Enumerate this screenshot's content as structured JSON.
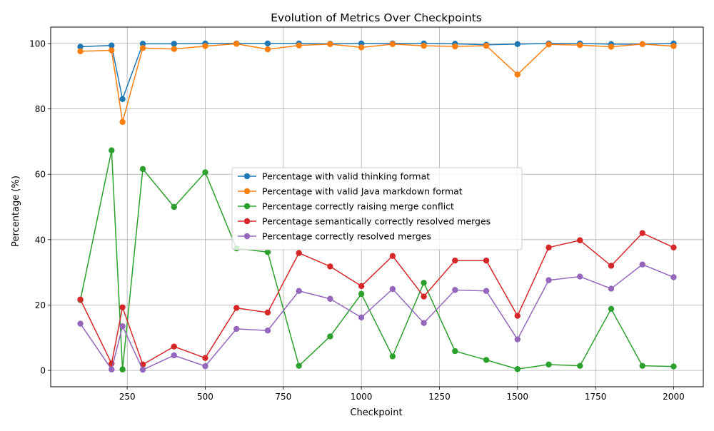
{
  "chart_data": {
    "type": "line",
    "title": "Evolution of Metrics Over Checkpoints",
    "xlabel": "Checkpoint",
    "ylabel": "Percentage (%)",
    "xlim": [
      5,
      2095
    ],
    "ylim": [
      -5,
      105
    ],
    "xticks": [
      250,
      500,
      750,
      1000,
      1250,
      1500,
      1750,
      2000
    ],
    "yticks": [
      0,
      20,
      40,
      60,
      80,
      100
    ],
    "grid": true,
    "legend_position": "center",
    "x": [
      100,
      200,
      235,
      300,
      400,
      500,
      600,
      700,
      800,
      900,
      1000,
      1100,
      1200,
      1300,
      1400,
      1500,
      1600,
      1700,
      1800,
      1900,
      2000
    ],
    "series": [
      {
        "name": "Percentage with valid thinking format",
        "color": "#1f77b4",
        "values": [
          99.0,
          99.4,
          83.0,
          99.9,
          99.9,
          100.0,
          100.0,
          100.0,
          100.0,
          99.9,
          100.0,
          100.0,
          100.0,
          99.9,
          99.6,
          99.8,
          100.0,
          100.0,
          99.8,
          99.8,
          100.0
        ]
      },
      {
        "name": "Percentage with valid Java markdown format",
        "color": "#ff7f0e",
        "values": [
          97.6,
          97.9,
          76.0,
          98.6,
          98.3,
          99.2,
          99.9,
          98.2,
          99.4,
          99.8,
          98.8,
          99.8,
          99.3,
          99.1,
          99.3,
          90.5,
          99.7,
          99.5,
          99.0,
          99.8,
          99.2
        ]
      },
      {
        "name": "Percentage correctly raising merge conflict",
        "color": "#2ca02c",
        "values": [
          21.5,
          67.3,
          0.3,
          61.6,
          50.0,
          60.6,
          37.3,
          36.2,
          1.4,
          10.4,
          23.4,
          4.3,
          26.8,
          5.9,
          3.2,
          0.4,
          1.8,
          1.4,
          18.8,
          1.4,
          1.2
        ]
      },
      {
        "name": "Percentage semantically correctly resolved merges",
        "color": "#d62728",
        "values": [
          21.7,
          2.1,
          19.3,
          1.8,
          7.3,
          3.8,
          19.1,
          17.7,
          35.9,
          31.8,
          25.8,
          35.0,
          22.6,
          33.6,
          33.6,
          16.7,
          37.6,
          39.8,
          32.0,
          42.0,
          37.6
        ]
      },
      {
        "name": "Percentage correctly resolved merges",
        "color": "#9467bd",
        "values": [
          14.3,
          0.3,
          13.5,
          0.2,
          4.6,
          1.3,
          12.7,
          12.2,
          24.3,
          21.9,
          16.2,
          24.9,
          14.5,
          24.6,
          24.3,
          9.5,
          27.6,
          28.7,
          25.0,
          32.4,
          28.5
        ]
      }
    ]
  }
}
